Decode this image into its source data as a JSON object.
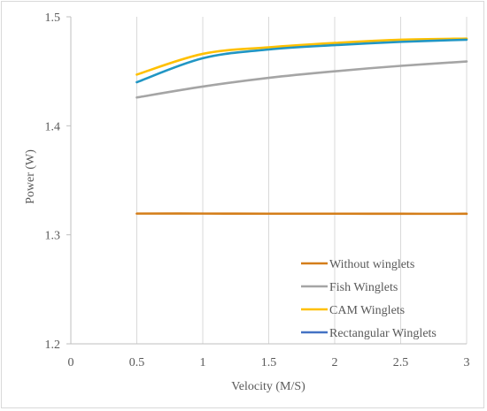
{
  "chart_data": {
    "type": "line",
    "title": "",
    "xlabel": "Velocity (M/S)",
    "ylabel": "Power (W)",
    "xlim": [
      0,
      3
    ],
    "ylim": [
      1.2,
      1.5
    ],
    "x_ticks": [
      "0",
      "0.5",
      "1",
      "1.5",
      "2",
      "2.5",
      "3"
    ],
    "y_ticks": [
      "1.2",
      "1.3",
      "1.4",
      "1.5"
    ],
    "grid": "vertical",
    "legend_position": "bottom-right",
    "x": [
      0.5,
      1.0,
      1.5,
      2.0,
      2.5,
      3.0
    ],
    "series": [
      {
        "name": "Without winglets",
        "color": "#d47e1a",
        "values": [
          1.3195,
          1.3195,
          1.3194,
          1.3194,
          1.3193,
          1.3193
        ]
      },
      {
        "name": "Fish Winglets",
        "color": "#a5a5a5",
        "values": [
          1.426,
          1.436,
          1.444,
          1.45,
          1.455,
          1.459
        ]
      },
      {
        "name": "CAM Winglets",
        "color": "#ffc000",
        "values": [
          1.447,
          1.466,
          1.472,
          1.476,
          1.479,
          1.48
        ]
      },
      {
        "name": "Rectangular Winglets",
        "color": "#4472c4",
        "values": [
          null,
          null,
          null,
          null,
          null,
          null
        ]
      },
      {
        "name": "",
        "color": "#2196c4",
        "values": [
          1.44,
          1.462,
          1.47,
          1.474,
          1.477,
          1.479
        ],
        "legend": false
      }
    ]
  }
}
